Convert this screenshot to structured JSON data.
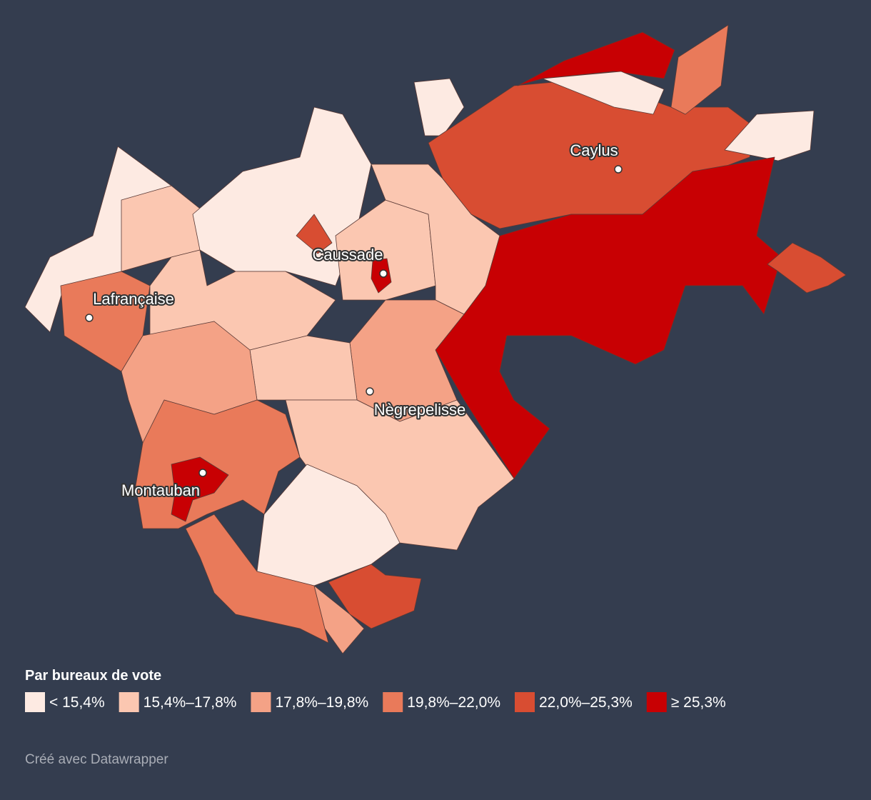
{
  "map": {
    "labels": [
      {
        "text": "Caylus"
      },
      {
        "text": "Caussade"
      },
      {
        "text": "Lafrançaise"
      },
      {
        "text": "Nègrepelisse"
      },
      {
        "text": "Montauban"
      }
    ],
    "legend": {
      "title": "Par bureaux de vote",
      "items": [
        {
          "label": "< 15,4%",
          "color": "#fdeae2"
        },
        {
          "label": "15,4%–17,8%",
          "color": "#fbc7b1"
        },
        {
          "label": "17,8%–19,8%",
          "color": "#f4a286"
        },
        {
          "label": "19,8%–22,0%",
          "color": "#e97a5a"
        },
        {
          "label": "22,0%–25,3%",
          "color": "#d84d32"
        },
        {
          "label": "≥ 25,3%",
          "color": "#c80003"
        }
      ]
    },
    "footer": "Créé avec Datawrapper"
  }
}
